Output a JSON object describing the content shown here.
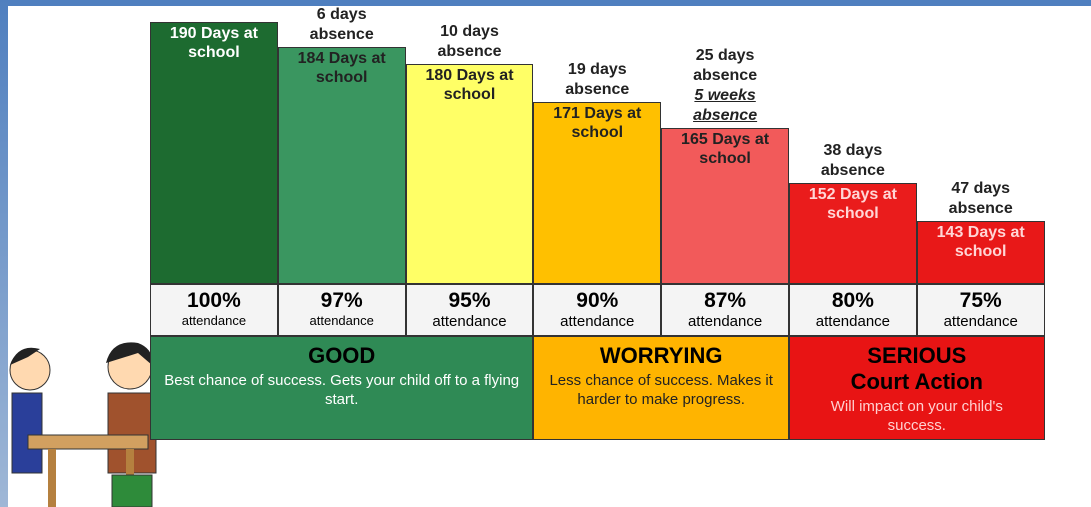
{
  "chart_data": {
    "type": "bar",
    "values": [
      190,
      184,
      180,
      171,
      165,
      152,
      143
    ],
    "value_labels": [
      "190 Days at school",
      "184 Days at school",
      "180 Days at school",
      "171 Days at school",
      "165 Days at school",
      "152 Days at school",
      "143 Days at school"
    ],
    "absence_labels": [
      null,
      "6 days absence",
      "10 days absence",
      "19 days absence",
      "25 days absence",
      "38 days absence",
      "47 days absence"
    ],
    "absence_note": "5 weeks absence",
    "colors": [
      "#1d6b30",
      "#3a9660",
      "#ffff66",
      "#ffc000",
      "#f25a5a",
      "#ea1c1c",
      "#e81818"
    ],
    "attendance": [
      100,
      97,
      95,
      90,
      87,
      80,
      75
    ],
    "attendance_labels": [
      "100%",
      "97%",
      "95%",
      "90%",
      "87%",
      "80%",
      "75%"
    ],
    "attendance_caption": "attendance",
    "ylim": [
      128,
      190
    ],
    "bands": [
      {
        "title": "GOOD",
        "text": "Best chance of success. Gets your child off to a flying start.",
        "color": "#2f8a55"
      },
      {
        "title": "WORRYING",
        "text": "Less chance of success. Makes it harder to make progress.",
        "color": "#ffb400"
      },
      {
        "title": "SERIOUS",
        "subtitle": "Court Action",
        "text": "Will impact on your child's success.",
        "color": "#e81414"
      }
    ]
  }
}
